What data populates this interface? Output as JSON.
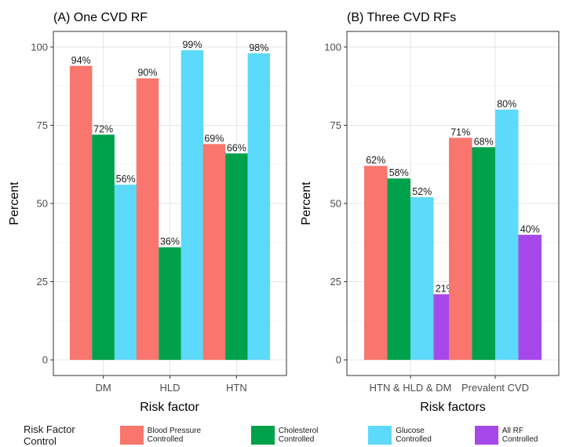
{
  "legend": {
    "title": "Risk Factor Control",
    "items": [
      {
        "label": "Blood Pressure Controlled",
        "color": "#F8766D"
      },
      {
        "label": "Cholesterol Controlled",
        "color": "#00A14B"
      },
      {
        "label": "Glucose Controlled",
        "color": "#5CD9FB"
      },
      {
        "label": "All RF Controlled",
        "color": "#A748EB"
      }
    ]
  },
  "chart_data": [
    {
      "type": "bar",
      "title": "(A) One CVD RF",
      "xlabel": "Risk factor",
      "ylabel": "Percent",
      "ylim": [
        0,
        100
      ],
      "yticks": [
        0,
        25,
        50,
        75,
        100
      ],
      "grid": true,
      "categories": [
        "DM",
        "HLD",
        "HTN"
      ],
      "series": [
        {
          "name": "Blood Pressure Controlled",
          "values": [
            94,
            90,
            69
          ],
          "labels": [
            "94%",
            "90%",
            "69%"
          ]
        },
        {
          "name": "Cholesterol Controlled",
          "values": [
            72,
            36,
            66
          ],
          "labels": [
            "72%",
            "36%",
            "66%"
          ]
        },
        {
          "name": "Glucose Controlled",
          "values": [
            56,
            99,
            98
          ],
          "labels": [
            "56%",
            "99%",
            "98%"
          ]
        }
      ]
    },
    {
      "type": "bar",
      "title": "(B) Three CVD RFs",
      "xlabel": "Risk factors",
      "ylabel": "Percent",
      "ylim": [
        0,
        100
      ],
      "yticks": [
        0,
        25,
        50,
        75,
        100
      ],
      "grid": true,
      "categories": [
        "HTN & HLD & DM",
        "Prevalent CVD"
      ],
      "series": [
        {
          "name": "Blood Pressure Controlled",
          "values": [
            62,
            71
          ],
          "labels": [
            "62%",
            "71%"
          ]
        },
        {
          "name": "Cholesterol Controlled",
          "values": [
            58,
            68
          ],
          "labels": [
            "58%",
            "68%"
          ]
        },
        {
          "name": "Glucose Controlled",
          "values": [
            52,
            80
          ],
          "labels": [
            "52%",
            "80%"
          ]
        },
        {
          "name": "All RF Controlled",
          "values": [
            21,
            40
          ],
          "labels": [
            "21%",
            "40%"
          ]
        }
      ]
    }
  ]
}
